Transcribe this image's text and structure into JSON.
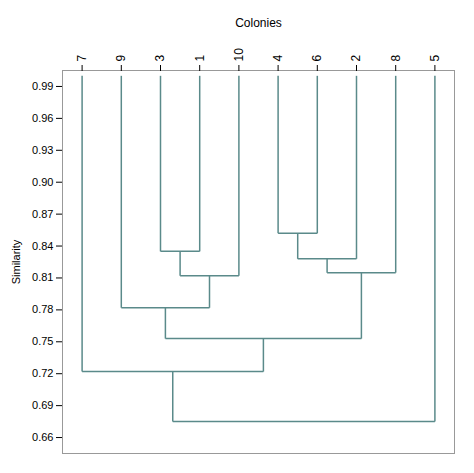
{
  "chart_data": {
    "type": "dendrogram",
    "title": "Colonies",
    "ylabel": "Similarity",
    "categories": [
      "7",
      "9",
      "3",
      "1",
      "10",
      "4",
      "6",
      "2",
      "8",
      "5"
    ],
    "leaf_height": 1.0,
    "merges": [
      {
        "left": "3",
        "right": "1",
        "height": 0.835
      },
      {
        "left": 0,
        "right": "10",
        "height": 0.812
      },
      {
        "left": "9",
        "right": 1,
        "height": 0.782
      },
      {
        "left": "4",
        "right": "6",
        "height": 0.852
      },
      {
        "left": 3,
        "right": "2",
        "height": 0.828
      },
      {
        "left": 4,
        "right": "8",
        "height": 0.815
      },
      {
        "left": 2,
        "right": 5,
        "height": 0.753
      },
      {
        "left": "7",
        "right": 6,
        "height": 0.722
      },
      {
        "left": 7,
        "right": "5",
        "height": 0.675
      }
    ],
    "color": "#5a8a8a",
    "ylim": [
      0.645,
      1.005
    ],
    "yticks": [
      0.66,
      0.69,
      0.72,
      0.75,
      0.78,
      0.81,
      0.84,
      0.87,
      {
        "value": 0.9,
        "label": "0.90"
      },
      0.93,
      0.96,
      0.99
    ]
  }
}
